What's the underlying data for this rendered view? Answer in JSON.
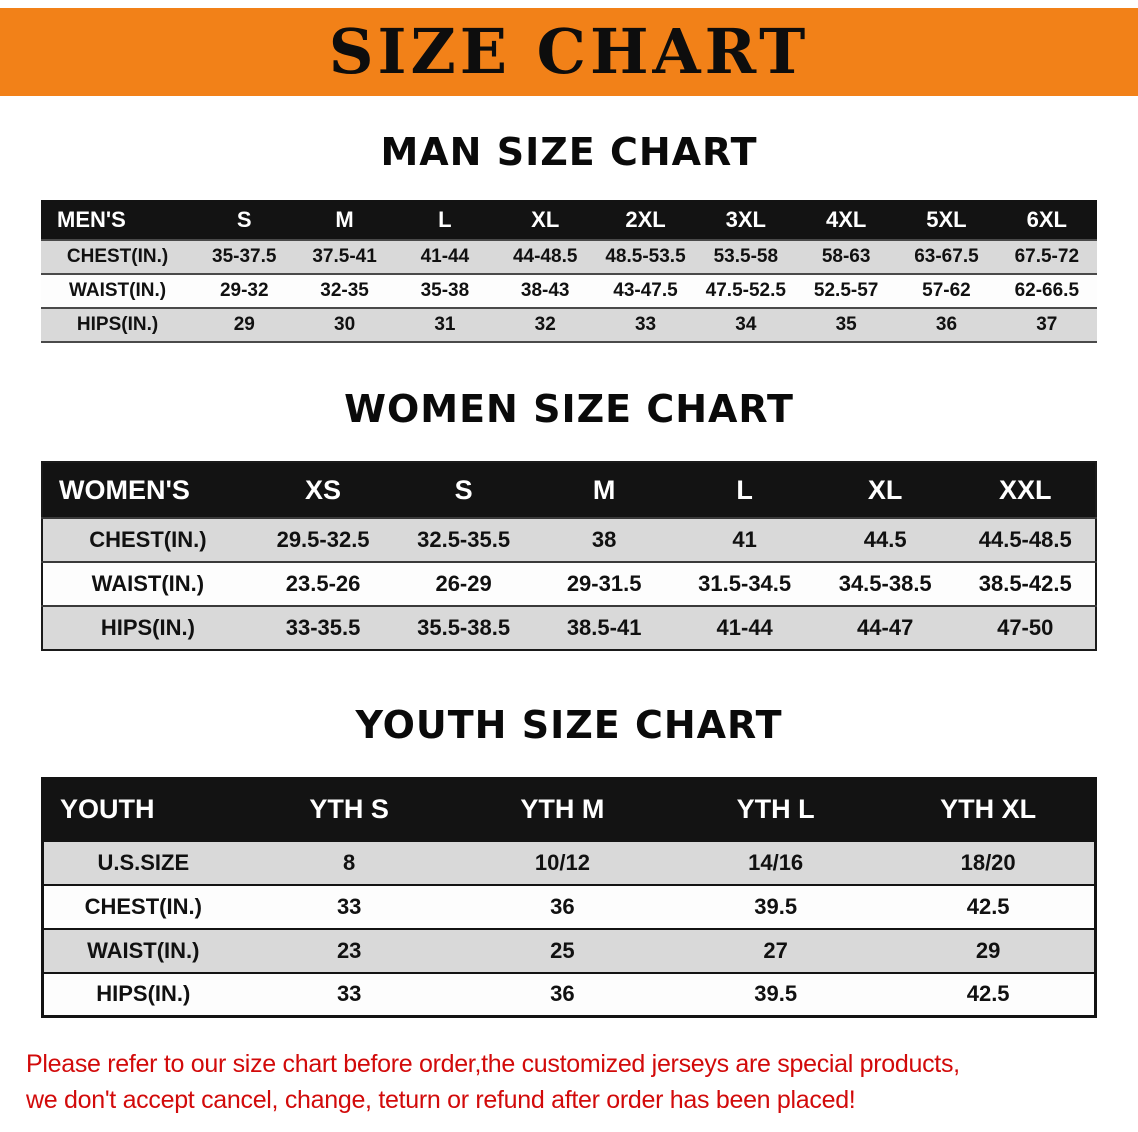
{
  "banner": {
    "title": "SIZE CHART",
    "bg_color": "#f28118",
    "text_color": "#0d0d0d"
  },
  "sections": [
    {
      "heading": "MAN SIZE CHART",
      "table": {
        "header": [
          "MEN'S",
          "S",
          "M",
          "L",
          "XL",
          "2XL",
          "3XL",
          "4XL",
          "5XL",
          "6XL"
        ],
        "rows": [
          {
            "label": "CHEST(IN.)",
            "values": [
              "35-37.5",
              "37.5-41",
              "41-44",
              "44-48.5",
              "48.5-53.5",
              "53.5-58",
              "58-63",
              "63-67.5",
              "67.5-72"
            ]
          },
          {
            "label": "WAIST(IN.)",
            "values": [
              "29-32",
              "32-35",
              "35-38",
              "38-43",
              "43-47.5",
              "47.5-52.5",
              "52.5-57",
              "57-62",
              "62-66.5"
            ]
          },
          {
            "label": "HIPS(IN.)",
            "values": [
              "29",
              "30",
              "31",
              "32",
              "33",
              "34",
              "35",
              "36",
              "37"
            ]
          }
        ]
      }
    },
    {
      "heading": "WOMEN SIZE CHART",
      "table": {
        "header": [
          "WOMEN'S",
          "XS",
          "S",
          "M",
          "L",
          "XL",
          "XXL"
        ],
        "rows": [
          {
            "label": "CHEST(IN.)",
            "values": [
              "29.5-32.5",
              "32.5-35.5",
              "38",
              "41",
              "44.5",
              "44.5-48.5"
            ]
          },
          {
            "label": "WAIST(IN.)",
            "values": [
              "23.5-26",
              "26-29",
              "29-31.5",
              "31.5-34.5",
              "34.5-38.5",
              "38.5-42.5"
            ]
          },
          {
            "label": "HIPS(IN.)",
            "values": [
              "33-35.5",
              "35.5-38.5",
              "38.5-41",
              "41-44",
              "44-47",
              "47-50"
            ]
          }
        ]
      }
    },
    {
      "heading": "YOUTH SIZE CHART",
      "table": {
        "header": [
          "YOUTH",
          "YTH S",
          "YTH M",
          "YTH L",
          "YTH XL"
        ],
        "rows": [
          {
            "label": "U.S.SIZE",
            "values": [
              "8",
              "10/12",
              "14/16",
              "18/20"
            ]
          },
          {
            "label": "CHEST(IN.)",
            "values": [
              "33",
              "36",
              "39.5",
              "42.5"
            ]
          },
          {
            "label": "WAIST(IN.)",
            "values": [
              "23",
              "25",
              "27",
              "29"
            ]
          },
          {
            "label": "HIPS(IN.)",
            "values": [
              "33",
              "36",
              "39.5",
              "42.5"
            ]
          }
        ]
      }
    }
  ],
  "footer": {
    "line1": "Please refer to our size chart before order,the customized jerseys are special products,",
    "line2": "we don't accept cancel, change, teturn or refund after order has been placed!",
    "text_color": "#d20a0a"
  },
  "colors": {
    "header_row_bg": "#131313",
    "stripe_row_bg": "#d9d9d9",
    "plain_row_bg": "#fdfdfd"
  }
}
